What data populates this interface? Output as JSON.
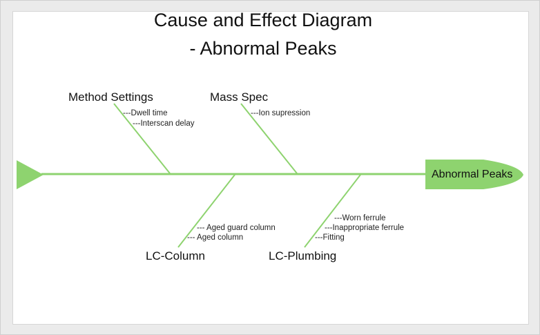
{
  "title": {
    "line1": "Cause and Effect Diagram",
    "line2": "- Abnormal Peaks"
  },
  "effect": {
    "label": "Abnormal Peaks",
    "color": "#8ed36f"
  },
  "colors": {
    "spine": "#8ed36f",
    "bone": "#8ed36f"
  },
  "categories": {
    "method_settings": {
      "label": "Method Settings",
      "causes": [
        "---Dwell time",
        "---Interscan delay"
      ]
    },
    "mass_spec": {
      "label": "Mass Spec",
      "causes": [
        "---Ion supression"
      ]
    },
    "lc_column": {
      "label": "LC-Column",
      "causes": [
        "--- Aged guard column",
        "--- Aged column"
      ]
    },
    "lc_plumbing": {
      "label": "LC-Plumbing",
      "causes": [
        "---Worn ferrule",
        "---Inappropriate ferrule",
        "---Fitting"
      ]
    }
  }
}
